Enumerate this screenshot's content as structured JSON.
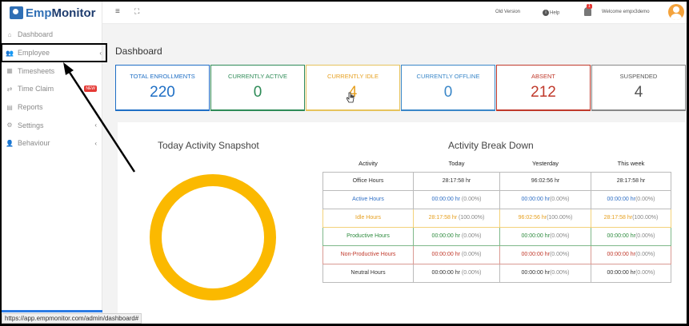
{
  "app": {
    "brand_prefix": "Emp",
    "brand_suffix": "Monitor"
  },
  "sidebar": {
    "items": [
      {
        "label": "Dashboard",
        "icon": "home-icon",
        "glyph": "⌂",
        "chevron": ""
      },
      {
        "label": "Employee",
        "icon": "users-icon",
        "glyph": "👥",
        "chevron": "‹"
      },
      {
        "label": "Timesheets",
        "icon": "table-icon",
        "glyph": "▦",
        "chevron": ""
      },
      {
        "label": "Time Claim",
        "icon": "swap-icon",
        "glyph": "⇄",
        "chevron": "",
        "badge": "NEW"
      },
      {
        "label": "Reports",
        "icon": "report-icon",
        "glyph": "▤",
        "chevron": ""
      },
      {
        "label": "Settings",
        "icon": "gear-icon",
        "glyph": "⚙",
        "chevron": "‹"
      },
      {
        "label": "Behaviour",
        "icon": "user-cog-icon",
        "glyph": "👤",
        "chevron": "‹"
      }
    ]
  },
  "topbar": {
    "menu_glyph": "≡",
    "expand_glyph": "⛶",
    "old_version": "Old Version",
    "help": "Help",
    "notification_count": "1",
    "welcome": "Welcome  empx3demo"
  },
  "dashboard": {
    "title": "Dashboard",
    "cards": [
      {
        "label": "TOTAL ENROLLMENTS",
        "value": "220",
        "color": "#1f6fc5",
        "label_color": "#1f6fc5",
        "border": "#1f6fc5"
      },
      {
        "label": "CURRENTLY ACTIVE",
        "value": "0",
        "color": "#2e8b57",
        "label_color": "#2e8b57",
        "border": "#2e8b57"
      },
      {
        "label": "CURRENTLY IDLE",
        "value": "4",
        "color": "#e6a020",
        "label_color": "#e6a020",
        "border": "#e6c35c"
      },
      {
        "label": "CURRENTLY OFFLINE",
        "value": "0",
        "color": "#3a87c8",
        "label_color": "#3a87c8",
        "border": "#3a87c8"
      },
      {
        "label": "ABSENT",
        "value": "212",
        "color": "#c0392b",
        "label_color": "#c0392b",
        "border": "#c0392b"
      },
      {
        "label": "SUSPENDED",
        "value": "4",
        "color": "#555555",
        "label_color": "#555555",
        "border": "#888888"
      }
    ],
    "snapshot_title": "Today Activity Snapshot",
    "breakdown_title": "Activity Break Down",
    "table": {
      "headers": [
        "Activity",
        "Today",
        "Yesterday",
        "This week"
      ],
      "rows": [
        {
          "name": "Office Hours",
          "today": "28:17:58 hr",
          "today_pct": "",
          "yesterday": "96:02:56 hr",
          "yesterday_pct": "",
          "week": "28:17:58 hr",
          "week_pct": "",
          "color": "#333333",
          "border": "#bbbbbb"
        },
        {
          "name": "Active Hours",
          "today": "00:00:00 hr",
          "today_pct": " (0.00%)",
          "yesterday": "00:00:00 hr",
          "yesterday_pct": "(0.00%)",
          "week": "00:00:00 hr",
          "week_pct": "(0.00%)",
          "color": "#2f6fc5",
          "border": "#bbbbbb"
        },
        {
          "name": "Idle Hours",
          "today": "28:17:58 hr",
          "today_pct": " (100.00%)",
          "yesterday": "96:02:56 hr",
          "yesterday_pct": "(100.00%)",
          "week": "28:17:58 hr",
          "week_pct": "(100.00%)",
          "color": "#e6a020",
          "border": "#f3d27a"
        },
        {
          "name": "Productive Hours",
          "today": "00:00:00 hr",
          "today_pct": " (0.00%)",
          "yesterday": "00:00:00 hr",
          "yesterday_pct": "(0.00%)",
          "week": "00:00:00 hr",
          "week_pct": "(0.00%)",
          "color": "#2e8b3e",
          "border": "#7fb88a"
        },
        {
          "name": "Non-Productive Hours",
          "today": "00:00:00 hr",
          "today_pct": " (0.00%)",
          "yesterday": "00:00:00 hr",
          "yesterday_pct": "(0.00%)",
          "week": "00:00:00 hr",
          "week_pct": "(0.00%)",
          "color": "#c0392b",
          "border": "#d99a93"
        },
        {
          "name": "Neutral Hours",
          "today": "00:00:00 hr",
          "today_pct": " (0.00%)",
          "yesterday": "00:00:00 hr",
          "yesterday_pct": "(0.00%)",
          "week": "00:00:00 hr",
          "week_pct": "(0.00%)",
          "color": "#333333",
          "border": "#bbbbbb"
        }
      ]
    }
  },
  "statusbar": {
    "url": "https://app.empmonitor.com/admin/dashboard#"
  }
}
